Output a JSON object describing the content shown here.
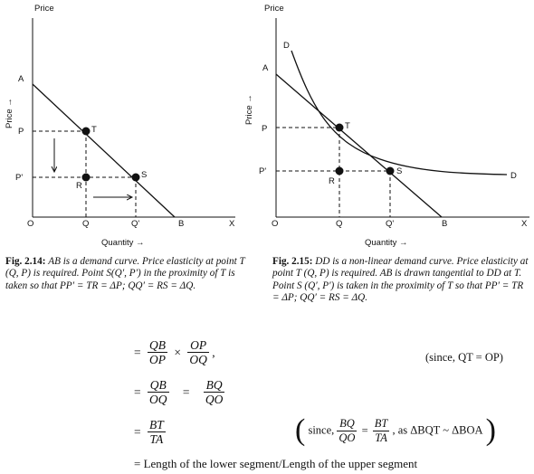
{
  "left_figure": {
    "y_axis_label": "Price",
    "price_arrow": "Price →",
    "x_axis_label": "Quantity →",
    "labels": {
      "A": "A",
      "P": "P",
      "Pp": "P'",
      "T": "T",
      "S": "S",
      "R": "R",
      "O": "O",
      "Q": "Q",
      "Qp": "Q'",
      "B": "B",
      "X": "X"
    },
    "caption_number": "Fig. 2.14:",
    "caption_text": "AB is a demand curve. Price elasticity at point T (Q, P) is required. Point S(Q′, P′) in the proximity of T is taken so that PP′ = TR = ΔP; QQ′ = RS = ΔQ."
  },
  "right_figure": {
    "y_axis_label": "Price",
    "price_arrow": "Price →",
    "x_axis_label": "Quantity →",
    "labels": {
      "D_top": "D",
      "D_right": "D",
      "A": "A",
      "P": "P",
      "Pp": "P'",
      "T": "T",
      "S": "S",
      "R": "R",
      "O": "O",
      "Q": "Q",
      "Qp": "Q'",
      "B": "B",
      "X": "X"
    },
    "caption_number": "Fig. 2.15:",
    "caption_text": "DD is a non-linear demand curve. Price elasticity at point T (Q, P) is required. AB is drawn tangential to DD at T. Point S (Q′, P′) is taken in the proximity of T so that PP′ = TR = ΔP; QQ′ = RS = ΔQ."
  },
  "equations": {
    "line1": {
      "eq": "=",
      "f1_num": "QB",
      "f1_den": "OP",
      "times": "×",
      "f2_num": "OP",
      "f2_den": "OQ",
      "tail": ",",
      "note": "(since, QT = OP)"
    },
    "line2": {
      "eq": "=",
      "f1_num": "QB",
      "f1_den": "OQ",
      "eq2": "=",
      "f2_num": "BQ",
      "f2_den": "QO"
    },
    "line3": {
      "eq": "=",
      "f1_num": "BT",
      "f1_den": "TA",
      "note_pre": "since,",
      "n1_num": "BQ",
      "n1_den": "QO",
      "n_eq": "=",
      "n2_num": "BT",
      "n2_den": "TA",
      "note_post": ", as ΔBQT ~ ΔBOA"
    },
    "line4": "= Length of the lower segment/Length of the upper segment"
  }
}
